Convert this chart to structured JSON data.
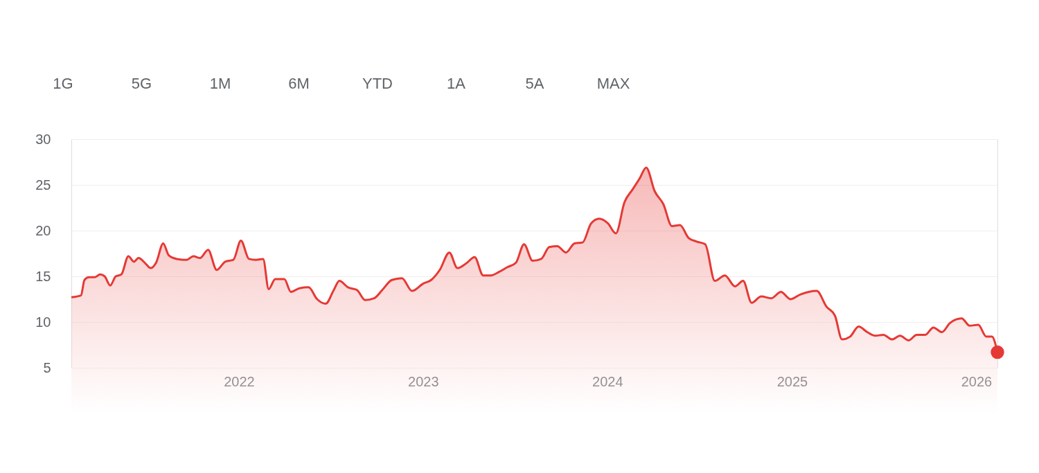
{
  "chart_data": {
    "type": "area",
    "annotations": [
      "1G",
      "5G",
      "1M",
      "6M",
      "YTD",
      "1A",
      "5A",
      "MAX"
    ],
    "xlim": [
      "2021-02-03",
      "2026-02-12"
    ],
    "xticks": [
      {
        "value": "2022-01-01",
        "label": "2022"
      },
      {
        "value": "2023-01-01",
        "label": "2023"
      },
      {
        "value": "2024-01-01",
        "label": "2024"
      },
      {
        "value": "2025-01-01",
        "label": "2025"
      },
      {
        "value": "2026-01-01",
        "label": "2026"
      }
    ],
    "ylim": [
      5,
      30
    ],
    "yticks": [
      5,
      10,
      15,
      20,
      25,
      30
    ],
    "grid": "y",
    "series": [
      {
        "color": "#e53935",
        "x": [
          "2021-02-03",
          "2021-02-22",
          "2021-03-01",
          "2021-03-10",
          "2021-03-21",
          "2021-04-01",
          "2021-04-10",
          "2021-04-21",
          "2021-05-02",
          "2021-05-13",
          "2021-05-27",
          "2021-06-07",
          "2021-06-16",
          "2021-06-30",
          "2021-07-10",
          "2021-07-21",
          "2021-08-04",
          "2021-08-15",
          "2021-08-31",
          "2021-09-19",
          "2021-10-03",
          "2021-10-16",
          "2021-11-01",
          "2021-11-18",
          "2021-12-05",
          "2021-12-21",
          "2022-01-05",
          "2022-01-21",
          "2022-02-04",
          "2022-02-18",
          "2022-03-01",
          "2022-03-14",
          "2022-04-01",
          "2022-04-14",
          "2022-05-01",
          "2022-05-19",
          "2022-06-05",
          "2022-06-22",
          "2022-07-08",
          "2022-07-19",
          "2022-08-05",
          "2022-08-23",
          "2022-09-08",
          "2022-09-26",
          "2022-10-12",
          "2022-10-31",
          "2022-11-20",
          "2022-12-10",
          "2023-01-01",
          "2023-01-17",
          "2023-02-03",
          "2023-02-22",
          "2023-03-10",
          "2023-03-27",
          "2023-04-13",
          "2023-04-30",
          "2023-05-15",
          "2023-06-01",
          "2023-06-17",
          "2023-07-04",
          "2023-07-20",
          "2023-08-06",
          "2023-08-23",
          "2023-09-08",
          "2023-09-24",
          "2023-10-11",
          "2023-10-28",
          "2023-11-13",
          "2023-11-30",
          "2023-12-16",
          "2024-01-02",
          "2024-01-18",
          "2024-02-04",
          "2024-02-20",
          "2024-03-05",
          "2024-03-18",
          "2024-04-04",
          "2024-04-21",
          "2024-05-08",
          "2024-05-24",
          "2024-06-10",
          "2024-06-26",
          "2024-07-13",
          "2024-08-01",
          "2024-08-21",
          "2024-09-10",
          "2024-09-26",
          "2024-10-13",
          "2024-11-01",
          "2024-11-21",
          "2024-12-10",
          "2024-12-29",
          "2025-01-17",
          "2025-02-03",
          "2025-02-19",
          "2025-03-10",
          "2025-03-27",
          "2025-04-10",
          "2025-04-26",
          "2025-05-13",
          "2025-05-30",
          "2025-06-15",
          "2025-07-01",
          "2025-07-18",
          "2025-08-03",
          "2025-08-20",
          "2025-09-05",
          "2025-09-22",
          "2025-10-08",
          "2025-10-25",
          "2025-11-10",
          "2025-12-03",
          "2025-12-19",
          "2026-01-05",
          "2026-01-21",
          "2026-02-01",
          "2026-02-12"
        ],
        "values": [
          12.7,
          12.9,
          14.6,
          14.9,
          14.9,
          15.2,
          15.0,
          14.0,
          15.0,
          15.2,
          17.2,
          16.6,
          17.0,
          16.4,
          15.9,
          16.5,
          18.6,
          17.3,
          16.9,
          16.8,
          17.2,
          17.0,
          17.9,
          15.7,
          16.6,
          16.8,
          18.9,
          16.9,
          16.8,
          16.9,
          13.6,
          14.7,
          14.7,
          13.3,
          13.7,
          13.8,
          12.5,
          12.0,
          13.5,
          14.5,
          13.8,
          13.5,
          12.4,
          12.6,
          13.5,
          14.6,
          14.8,
          13.4,
          14.2,
          14.6,
          15.7,
          17.6,
          15.9,
          16.4,
          17.1,
          15.1,
          15.1,
          15.5,
          16.0,
          16.5,
          18.5,
          16.7,
          16.9,
          18.2,
          18.3,
          17.6,
          18.6,
          18.7,
          20.8,
          21.3,
          20.8,
          19.7,
          23.1,
          24.5,
          25.7,
          26.9,
          24.3,
          22.9,
          20.5,
          20.6,
          19.2,
          18.8,
          18.5,
          14.5,
          15.1,
          13.9,
          14.5,
          12.1,
          12.8,
          12.6,
          13.3,
          12.5,
          13.0,
          13.3,
          13.4,
          11.7,
          10.7,
          8.1,
          8.4,
          9.5,
          8.9,
          8.5,
          8.6,
          8.1,
          8.5,
          8.0,
          8.6,
          8.6,
          9.4,
          8.9,
          9.9,
          10.4,
          9.6,
          9.7,
          8.4,
          8.4,
          6.7
        ]
      },
      {
        "type": "scatter",
        "color": "#e53935",
        "marker": "circle",
        "x": [
          "2026-02-12"
        ],
        "values": [
          6.7
        ]
      }
    ]
  }
}
